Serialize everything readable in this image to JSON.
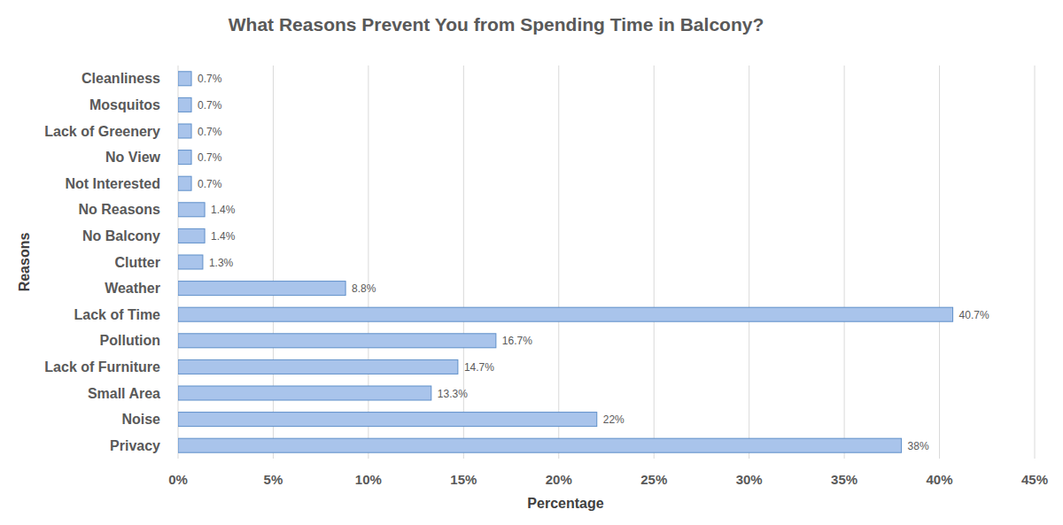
{
  "chart_data": {
    "type": "bar",
    "orientation": "horizontal",
    "title": "What Reasons Prevent You from Spending Time in Balcony?",
    "x_label": "Percentage",
    "y_label": "Reasons",
    "categories": [
      "Cleanliness",
      "Mosquitos",
      "Lack of Greenery",
      "No View",
      "Not Interested",
      "No Reasons",
      "No Balcony",
      "Clutter",
      "Weather",
      "Lack of Time",
      "Pollution",
      "Lack of Furniture",
      "Small Area",
      "Noise",
      "Privacy"
    ],
    "values": [
      0.7,
      0.7,
      0.7,
      0.7,
      0.7,
      1.4,
      1.4,
      1.3,
      8.8,
      40.7,
      16.7,
      14.7,
      13.3,
      22,
      38
    ],
    "value_labels": [
      "0.7%",
      "0.7%",
      "0.7%",
      "0.7%",
      "0.7%",
      "1.4%",
      "1.4%",
      "1.3%",
      "8.8%",
      "40.7%",
      "16.7%",
      "14.7%",
      "13.3%",
      "22%",
      "38%"
    ],
    "color": "#a9c4eb",
    "xlim": [
      0,
      45
    ],
    "xticks": [
      {
        "value": 0,
        "label": "0%"
      },
      {
        "value": 5,
        "label": "5%"
      },
      {
        "value": 10,
        "label": "10%"
      },
      {
        "value": 15,
        "label": "15%"
      },
      {
        "value": 20,
        "label": "20%"
      },
      {
        "value": 25,
        "label": "25%"
      },
      {
        "value": 30,
        "label": "30%"
      },
      {
        "value": 35,
        "label": "35%"
      },
      {
        "value": 40,
        "label": "40%"
      },
      {
        "value": 45,
        "label": "45%"
      }
    ],
    "grid": true,
    "data_labels": true
  }
}
